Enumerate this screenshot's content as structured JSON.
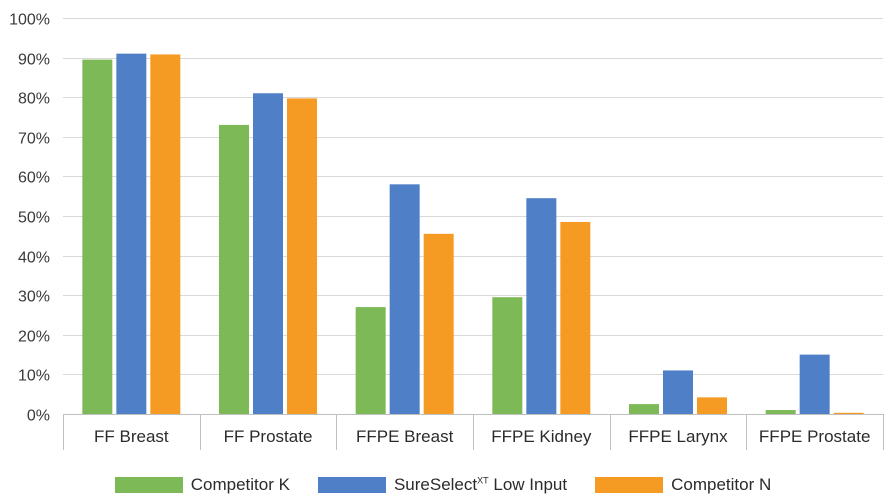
{
  "chart_data": {
    "type": "bar",
    "categories": [
      "FF Breast",
      "FF Prostate",
      "FFPE Breast",
      "FFPE Kidney",
      "FFPE Larynx",
      "FFPE Prostate"
    ],
    "series": [
      {
        "name": "Competitor K",
        "color": "#7dba57",
        "values": [
          89.5,
          73,
          27,
          29.5,
          2.5,
          1
        ]
      },
      {
        "name": "SureSelect XT Low Input",
        "name_main": "SureSelect",
        "name_sup": "XT",
        "name_tail": " Low Input",
        "color": "#4f7fc7",
        "values": [
          91,
          81,
          58,
          54.5,
          11,
          15
        ]
      },
      {
        "name": "Competitor N",
        "color": "#f59a23",
        "values": [
          90.8,
          79.7,
          45.5,
          48.5,
          4.2,
          0.3
        ]
      }
    ],
    "ylim": [
      0,
      100
    ],
    "yticks": [
      0,
      10,
      20,
      30,
      40,
      50,
      60,
      70,
      80,
      90,
      100
    ],
    "ytick_labels": [
      "0%",
      "10%",
      "20%",
      "30%",
      "40%",
      "50%",
      "60%",
      "70%",
      "80%",
      "90%",
      "100%"
    ],
    "grid": true,
    "legend_position": "bottom",
    "title": "",
    "xlabel": "",
    "ylabel": ""
  }
}
